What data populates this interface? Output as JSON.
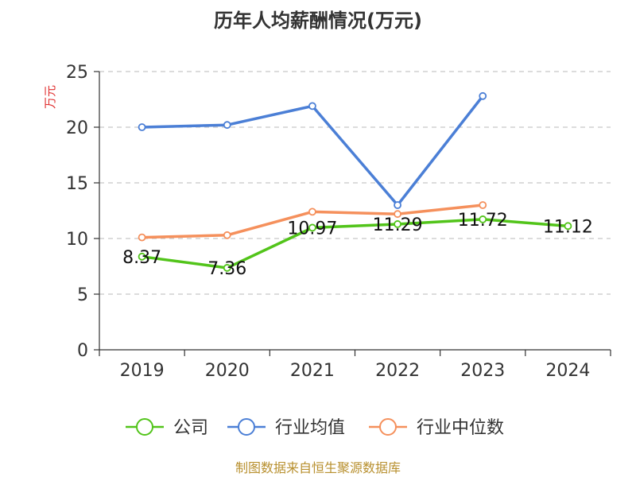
{
  "chart_data": {
    "type": "line",
    "title": "历年人均薪酬情况(万元)",
    "ylabel": "万元",
    "xlabel": "",
    "categories": [
      "2019",
      "2020",
      "2021",
      "2022",
      "2023",
      "2024"
    ],
    "ylim": [
      0,
      25
    ],
    "yticks": [
      0,
      5,
      10,
      15,
      20,
      25
    ],
    "grid": true,
    "legend_position": "bottom",
    "series": [
      {
        "name": "公司",
        "color": "#52c41a",
        "values": [
          8.37,
          7.36,
          10.97,
          11.29,
          11.72,
          11.12
        ],
        "labels": [
          "8.37",
          "7.36",
          "10.97",
          "11.29",
          "11.72",
          "11.12"
        ]
      },
      {
        "name": "行业均值",
        "color": "#4b7fd6",
        "values": [
          20.0,
          20.2,
          21.9,
          13.0,
          22.8,
          null
        ]
      },
      {
        "name": "行业中位数",
        "color": "#f5905c",
        "values": [
          10.1,
          10.3,
          12.4,
          12.2,
          13.0,
          null
        ]
      }
    ],
    "source": "制图数据来自恒生聚源数据库"
  }
}
